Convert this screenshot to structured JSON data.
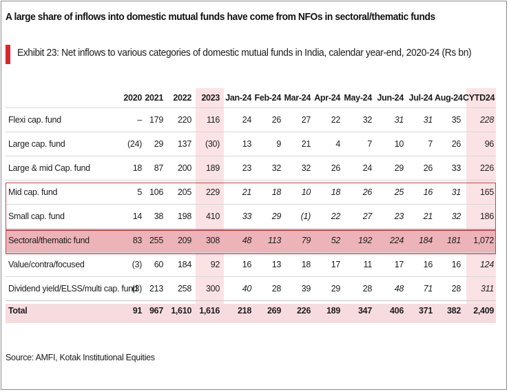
{
  "headline": "A large share of inflows into domestic mutual funds have come from NFOs in sectoral/thematic funds",
  "exhibit_title": "Exhibit 23: Net inflows to various categories of domestic mutual funds in India, calendar year-end, 2020-24 (Rs bn)",
  "source": "Source: AMFI, Kotak Institutional Equities",
  "colors": {
    "accent_red": "#d8262e",
    "highlight_column": "#fbe3e5",
    "highlight_row": "#ecb3b8",
    "box_border": "#c4434d",
    "total_row": "#f7dcdf"
  },
  "chart_data": {
    "type": "table",
    "columns": [
      "",
      "2020",
      "2021",
      "2022",
      "2023",
      "Jan-24",
      "Feb-24",
      "Mar-24",
      "Apr-24",
      "May-24",
      "Jun-24",
      "Jul-24",
      "Aug-24",
      "CYTD24"
    ],
    "rows": [
      {
        "label": "Flexi cap. fund",
        "values": [
          "–",
          "179",
          "220",
          "116",
          "24",
          "26",
          "27",
          "22",
          "32",
          "31",
          "31",
          "35",
          "228"
        ]
      },
      {
        "label": "Large cap. fund",
        "values": [
          "(24)",
          "29",
          "137",
          "(30)",
          "13",
          "9",
          "21",
          "4",
          "7",
          "10",
          "7",
          "26",
          "96"
        ]
      },
      {
        "label": "Large & mid Cap. fund",
        "values": [
          "18",
          "87",
          "200",
          "189",
          "23",
          "32",
          "32",
          "26",
          "24",
          "29",
          "26",
          "33",
          "226"
        ]
      },
      {
        "label": "Mid cap. fund",
        "values": [
          "5",
          "106",
          "205",
          "229",
          "21",
          "18",
          "10",
          "18",
          "26",
          "25",
          "16",
          "31",
          "165"
        ]
      },
      {
        "label": "Small cap. fund",
        "values": [
          "14",
          "38",
          "198",
          "410",
          "33",
          "29",
          "(1)",
          "22",
          "27",
          "23",
          "21",
          "32",
          "186"
        ]
      },
      {
        "label": "Sectoral/thematic fund",
        "values": [
          "83",
          "255",
          "209",
          "308",
          "48",
          "113",
          "79",
          "52",
          "192",
          "224",
          "184",
          "181",
          "1,072"
        ]
      },
      {
        "label": "Value/contra/focused",
        "values": [
          "(3)",
          "60",
          "184",
          "92",
          "16",
          "13",
          "18",
          "17",
          "11",
          "17",
          "16",
          "16",
          "124"
        ]
      },
      {
        "label": "Dividend yield/ELSS/multi cap. fund",
        "values": [
          "(3)",
          "213",
          "258",
          "300",
          "40",
          "28",
          "39",
          "29",
          "28",
          "48",
          "71",
          "28",
          "311"
        ]
      }
    ],
    "total": {
      "label": "Total",
      "values": [
        "91",
        "967",
        "1,610",
        "1,616",
        "218",
        "269",
        "226",
        "189",
        "347",
        "406",
        "371",
        "382",
        "2,409"
      ]
    }
  }
}
